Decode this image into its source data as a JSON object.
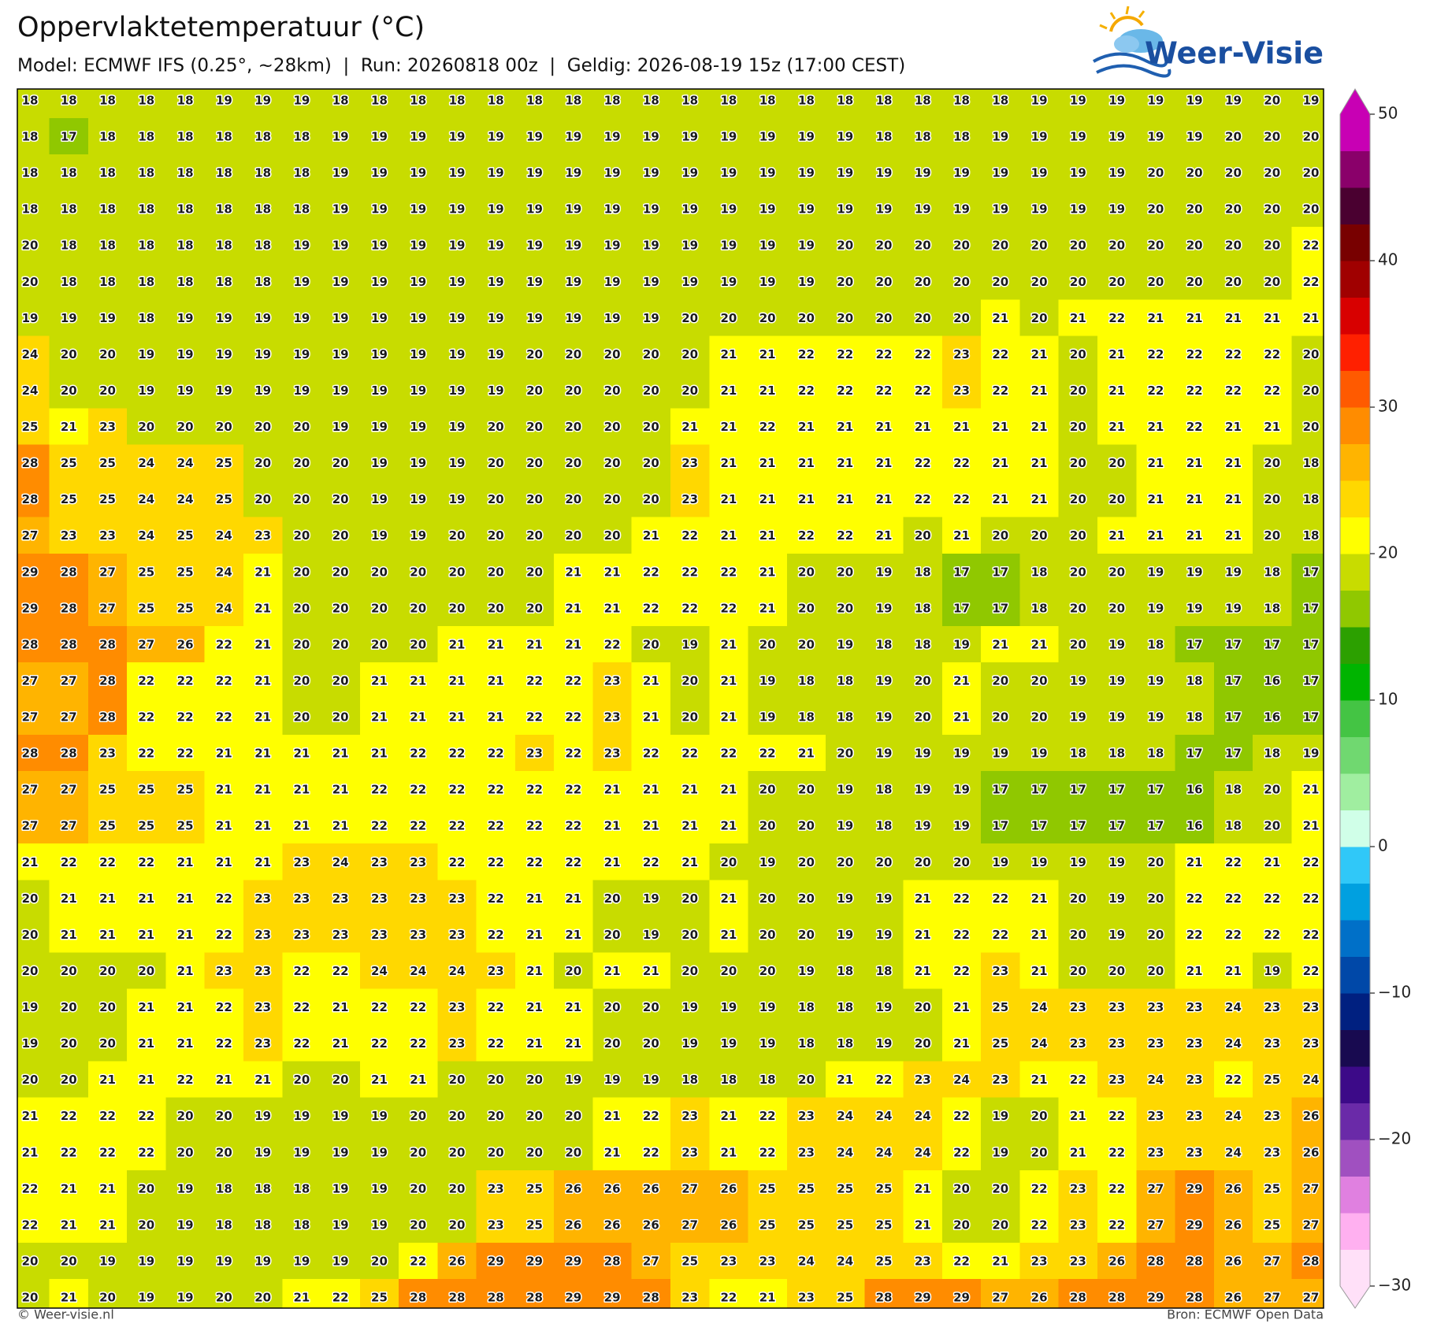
{
  "header": {
    "title": "Oppervlaktetemperatuur (°C)",
    "subtitle": "Model: ECMWF IFS (0.25°, ~28km)  |  Run: 20260818 00z  |  Geldig: 2026-08-19 15z (17:00 CEST)"
  },
  "logo": "Weer-Visie",
  "grid": {
    "rows": [
      [
        18,
        18,
        18,
        18,
        18,
        19,
        19,
        19,
        18,
        18,
        18,
        18,
        18,
        18,
        18,
        18,
        18,
        18,
        18,
        18,
        18,
        18,
        18,
        18,
        18,
        18,
        19,
        19,
        19,
        19,
        19,
        19,
        20,
        19
      ],
      [
        18,
        17,
        18,
        18,
        18,
        18,
        18,
        18,
        19,
        19,
        19,
        19,
        19,
        19,
        19,
        19,
        19,
        19,
        19,
        19,
        19,
        19,
        18,
        18,
        18,
        19,
        19,
        19,
        19,
        19,
        19,
        20,
        20,
        20
      ],
      [
        18,
        18,
        18,
        18,
        18,
        18,
        18,
        18,
        19,
        19,
        19,
        19,
        19,
        19,
        19,
        19,
        19,
        19,
        19,
        19,
        19,
        19,
        19,
        19,
        19,
        19,
        19,
        19,
        19,
        20,
        20,
        20,
        20,
        20
      ],
      [
        18,
        18,
        18,
        18,
        18,
        18,
        18,
        18,
        19,
        19,
        19,
        19,
        19,
        19,
        19,
        19,
        19,
        19,
        19,
        19,
        19,
        19,
        19,
        19,
        19,
        19,
        19,
        19,
        19,
        20,
        20,
        20,
        20,
        20
      ],
      [
        20,
        18,
        18,
        18,
        18,
        18,
        18,
        19,
        19,
        19,
        19,
        19,
        19,
        19,
        19,
        19,
        19,
        19,
        19,
        19,
        19,
        20,
        20,
        20,
        20,
        20,
        20,
        20,
        20,
        20,
        20,
        20,
        20,
        22
      ],
      [
        20,
        18,
        18,
        18,
        18,
        18,
        18,
        19,
        19,
        19,
        19,
        19,
        19,
        19,
        19,
        19,
        19,
        19,
        19,
        19,
        19,
        20,
        20,
        20,
        20,
        20,
        20,
        20,
        20,
        20,
        20,
        20,
        20,
        22
      ],
      [
        19,
        19,
        19,
        18,
        19,
        19,
        19,
        19,
        19,
        19,
        19,
        19,
        19,
        19,
        19,
        19,
        19,
        20,
        20,
        20,
        20,
        20,
        20,
        20,
        20,
        21,
        20,
        21,
        22,
        21,
        21,
        21,
        21,
        21
      ],
      [
        24,
        20,
        20,
        19,
        19,
        19,
        19,
        19,
        19,
        19,
        19,
        19,
        19,
        20,
        20,
        20,
        20,
        20,
        21,
        21,
        22,
        22,
        22,
        22,
        23,
        22,
        21,
        20,
        21,
        22,
        22,
        22,
        22,
        20
      ],
      [
        24,
        20,
        20,
        19,
        19,
        19,
        19,
        19,
        19,
        19,
        19,
        19,
        19,
        20,
        20,
        20,
        20,
        20,
        21,
        21,
        22,
        22,
        22,
        22,
        23,
        22,
        21,
        20,
        21,
        22,
        22,
        22,
        22,
        20
      ],
      [
        25,
        21,
        23,
        20,
        20,
        20,
        20,
        20,
        19,
        19,
        19,
        19,
        20,
        20,
        20,
        20,
        20,
        21,
        21,
        22,
        21,
        21,
        21,
        21,
        21,
        21,
        21,
        20,
        21,
        21,
        22,
        21,
        21,
        20
      ],
      [
        28,
        25,
        25,
        24,
        24,
        25,
        20,
        20,
        20,
        19,
        19,
        19,
        20,
        20,
        20,
        20,
        20,
        23,
        21,
        21,
        21,
        21,
        21,
        22,
        22,
        21,
        21,
        20,
        20,
        21,
        21,
        21,
        20,
        18
      ],
      [
        28,
        25,
        25,
        24,
        24,
        25,
        20,
        20,
        20,
        19,
        19,
        19,
        20,
        20,
        20,
        20,
        20,
        23,
        21,
        21,
        21,
        21,
        21,
        22,
        22,
        21,
        21,
        20,
        20,
        21,
        21,
        21,
        20,
        18
      ],
      [
        27,
        23,
        23,
        24,
        25,
        24,
        23,
        20,
        20,
        19,
        19,
        20,
        20,
        20,
        20,
        20,
        21,
        22,
        21,
        21,
        22,
        22,
        21,
        20,
        21,
        20,
        20,
        20,
        21,
        21,
        21,
        21,
        20,
        18
      ],
      [
        29,
        28,
        27,
        25,
        25,
        24,
        21,
        20,
        20,
        20,
        20,
        20,
        20,
        20,
        21,
        21,
        22,
        22,
        22,
        21,
        20,
        20,
        19,
        18,
        17,
        17,
        18,
        20,
        20,
        19,
        19,
        19,
        18,
        17
      ],
      [
        29,
        28,
        27,
        25,
        25,
        24,
        21,
        20,
        20,
        20,
        20,
        20,
        20,
        20,
        21,
        21,
        22,
        22,
        22,
        21,
        20,
        20,
        19,
        18,
        17,
        17,
        18,
        20,
        20,
        19,
        19,
        19,
        18,
        17
      ],
      [
        28,
        28,
        28,
        27,
        26,
        22,
        21,
        20,
        20,
        20,
        20,
        21,
        21,
        21,
        21,
        22,
        20,
        19,
        21,
        20,
        20,
        19,
        18,
        18,
        19,
        21,
        21,
        20,
        19,
        18,
        17,
        17,
        17,
        17
      ],
      [
        27,
        27,
        28,
        22,
        22,
        22,
        21,
        20,
        20,
        21,
        21,
        21,
        21,
        22,
        22,
        23,
        21,
        20,
        21,
        19,
        18,
        18,
        19,
        20,
        21,
        20,
        20,
        19,
        19,
        19,
        18,
        17,
        16,
        17
      ],
      [
        27,
        27,
        28,
        22,
        22,
        22,
        21,
        20,
        20,
        21,
        21,
        21,
        21,
        22,
        22,
        23,
        21,
        20,
        21,
        19,
        18,
        18,
        19,
        20,
        21,
        20,
        20,
        19,
        19,
        19,
        18,
        17,
        16,
        17
      ],
      [
        28,
        28,
        23,
        22,
        22,
        21,
        21,
        21,
        21,
        21,
        22,
        22,
        22,
        23,
        22,
        23,
        22,
        22,
        22,
        22,
        21,
        20,
        19,
        19,
        19,
        19,
        19,
        18,
        18,
        18,
        17,
        17,
        18,
        19
      ],
      [
        27,
        27,
        25,
        25,
        25,
        21,
        21,
        21,
        21,
        22,
        22,
        22,
        22,
        22,
        22,
        21,
        21,
        21,
        21,
        20,
        20,
        19,
        18,
        19,
        19,
        17,
        17,
        17,
        17,
        17,
        16,
        18,
        20,
        21
      ],
      [
        27,
        27,
        25,
        25,
        25,
        21,
        21,
        21,
        21,
        22,
        22,
        22,
        22,
        22,
        22,
        21,
        21,
        21,
        21,
        20,
        20,
        19,
        18,
        19,
        19,
        17,
        17,
        17,
        17,
        17,
        16,
        18,
        20,
        21
      ],
      [
        21,
        22,
        22,
        22,
        21,
        21,
        21,
        23,
        24,
        23,
        23,
        22,
        22,
        22,
        22,
        21,
        22,
        21,
        20,
        19,
        20,
        20,
        20,
        20,
        20,
        19,
        19,
        19,
        19,
        20,
        21,
        22,
        21,
        22
      ],
      [
        20,
        21,
        21,
        21,
        21,
        22,
        23,
        23,
        23,
        23,
        23,
        23,
        22,
        21,
        21,
        20,
        19,
        20,
        21,
        20,
        20,
        19,
        19,
        21,
        22,
        22,
        21,
        20,
        19,
        20,
        22,
        22,
        22,
        22
      ],
      [
        20,
        21,
        21,
        21,
        21,
        22,
        23,
        23,
        23,
        23,
        23,
        23,
        22,
        21,
        21,
        20,
        19,
        20,
        21,
        20,
        20,
        19,
        19,
        21,
        22,
        22,
        21,
        20,
        19,
        20,
        22,
        22,
        22,
        22
      ],
      [
        20,
        20,
        20,
        20,
        21,
        23,
        23,
        22,
        22,
        24,
        24,
        24,
        23,
        21,
        20,
        21,
        21,
        20,
        20,
        20,
        19,
        18,
        18,
        21,
        22,
        23,
        21,
        20,
        20,
        20,
        21,
        21,
        19,
        22
      ],
      [
        19,
        20,
        20,
        21,
        21,
        22,
        23,
        22,
        21,
        22,
        22,
        23,
        22,
        21,
        21,
        20,
        20,
        19,
        19,
        19,
        18,
        18,
        19,
        20,
        21,
        25,
        24,
        23,
        23,
        23,
        23,
        24,
        23,
        23
      ],
      [
        19,
        20,
        20,
        21,
        21,
        22,
        23,
        22,
        21,
        22,
        22,
        23,
        22,
        21,
        21,
        20,
        20,
        19,
        19,
        19,
        18,
        18,
        19,
        20,
        21,
        25,
        24,
        23,
        23,
        23,
        23,
        24,
        23,
        23
      ],
      [
        20,
        20,
        21,
        21,
        22,
        21,
        21,
        20,
        20,
        21,
        21,
        20,
        20,
        20,
        19,
        19,
        19,
        18,
        18,
        18,
        20,
        21,
        22,
        23,
        24,
        23,
        21,
        22,
        23,
        24,
        23,
        22,
        25,
        24
      ],
      [
        21,
        22,
        22,
        22,
        20,
        20,
        19,
        19,
        19,
        19,
        20,
        20,
        20,
        20,
        20,
        21,
        22,
        23,
        21,
        22,
        23,
        24,
        24,
        24,
        22,
        19,
        20,
        21,
        22,
        23,
        23,
        24,
        23,
        26
      ],
      [
        21,
        22,
        22,
        22,
        20,
        20,
        19,
        19,
        19,
        19,
        20,
        20,
        20,
        20,
        20,
        21,
        22,
        23,
        21,
        22,
        23,
        24,
        24,
        24,
        22,
        19,
        20,
        21,
        22,
        23,
        23,
        24,
        23,
        26
      ],
      [
        22,
        21,
        21,
        20,
        19,
        18,
        18,
        18,
        19,
        19,
        20,
        20,
        23,
        25,
        26,
        26,
        26,
        27,
        26,
        25,
        25,
        25,
        25,
        21,
        20,
        20,
        22,
        23,
        22,
        27,
        29,
        26,
        25,
        27
      ],
      [
        22,
        21,
        21,
        20,
        19,
        18,
        18,
        18,
        19,
        19,
        20,
        20,
        23,
        25,
        26,
        26,
        26,
        27,
        26,
        25,
        25,
        25,
        25,
        21,
        20,
        20,
        22,
        23,
        22,
        27,
        29,
        26,
        25,
        27
      ],
      [
        20,
        20,
        19,
        19,
        19,
        19,
        19,
        19,
        19,
        20,
        22,
        26,
        29,
        29,
        29,
        28,
        27,
        25,
        23,
        23,
        24,
        24,
        25,
        23,
        22,
        21,
        23,
        23,
        26,
        28,
        28,
        26,
        27,
        28
      ],
      [
        20,
        21,
        20,
        19,
        19,
        20,
        20,
        21,
        22,
        25,
        28,
        28,
        28,
        28,
        29,
        29,
        28,
        23,
        22,
        21,
        23,
        25,
        28,
        29,
        29,
        27,
        26,
        28,
        28,
        29,
        28,
        26,
        27,
        27
      ]
    ]
  },
  "colorbar": {
    "lim": [
      -30,
      50
    ],
    "ticks": [
      50,
      40,
      30,
      20,
      10,
      0,
      {
        "value": -10,
        "label": "−10"
      },
      {
        "value": -20,
        "label": "−20"
      },
      {
        "value": -30,
        "label": "−30"
      }
    ],
    "colors": [
      "#ffe0f8",
      "#ffb0f0",
      "#e080e0",
      "#a050c0",
      "#6a2aa8",
      "#3c0a88",
      "#180a50",
      "#002080",
      "#0048a8",
      "#0070c8",
      "#00a0e0",
      "#30c8f8",
      "#d0ffe8",
      "#a0eea0",
      "#70d870",
      "#44c444",
      "#00b400",
      "#2ca000",
      "#90c800",
      "#c8dc00",
      "#ffff00",
      "#ffd800",
      "#ffb400",
      "#ff8c00",
      "#ff5a00",
      "#ff2000",
      "#d80000",
      "#a00000",
      "#780000",
      "#4a0030",
      "#8a006a",
      "#c800b4"
    ]
  },
  "footer": {
    "left": "© Weer-visie.nl",
    "right": "Bron: ECMWF Open Data"
  }
}
